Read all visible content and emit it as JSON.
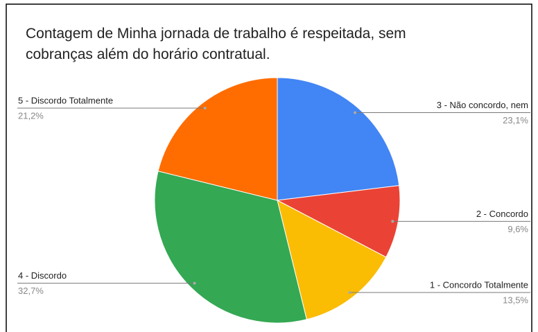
{
  "chart_data": {
    "type": "pie",
    "title": "Contagem de Minha jornada de trabalho é respeitada, sem cobranças além do horário contratual.",
    "categories": [
      "3 - Não concordo, nem",
      "2 - Concordo",
      "1 - Concordo Totalmente",
      "4 - Discordo",
      "5 - Discordo Totalmente"
    ],
    "values": [
      23.1,
      9.6,
      13.5,
      32.7,
      21.2
    ],
    "value_labels": [
      "23,1%",
      "9,6%",
      "13,5%",
      "32,7%",
      "21,2%"
    ],
    "colors": [
      "#4285f4",
      "#ea4335",
      "#fbbc04",
      "#34a853",
      "#ff6d01"
    ]
  }
}
